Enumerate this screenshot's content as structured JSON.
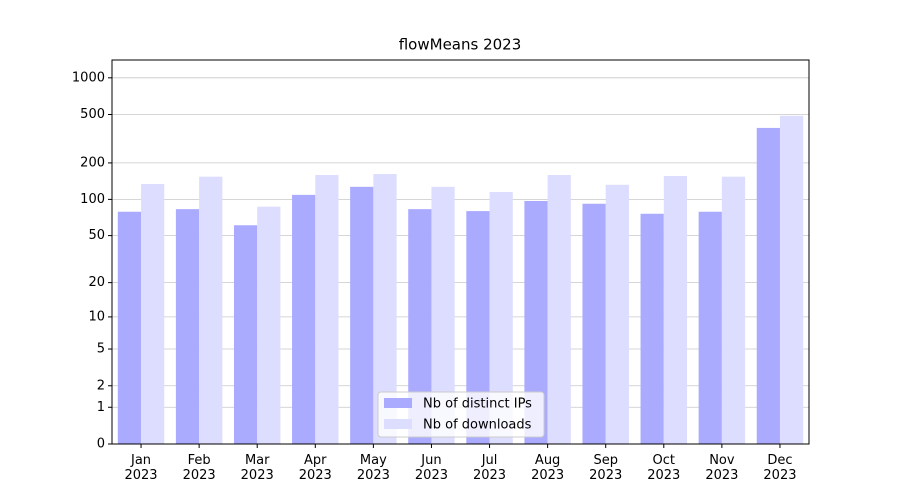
{
  "chart_data": {
    "type": "bar",
    "title": "flowMeans 2023",
    "categories": [
      "Jan\n2023",
      "Feb\n2023",
      "Mar\n2023",
      "Apr\n2023",
      "May\n2023",
      "Jun\n2023",
      "Jul\n2023",
      "Aug\n2023",
      "Sep\n2023",
      "Oct\n2023",
      "Nov\n2023",
      "Dec\n2023"
    ],
    "series": [
      {
        "name": "Nb of distinct IPs",
        "color": "#aaaaff",
        "values": [
          79,
          83,
          61,
          109,
          127,
          83,
          80,
          97,
          92,
          76,
          79,
          388
        ]
      },
      {
        "name": "Nb of downloads",
        "color": "#ddddff",
        "values": [
          134,
          154,
          87,
          159,
          162,
          127,
          115,
          159,
          132,
          156,
          154,
          488
        ]
      }
    ],
    "yscale": "log1p",
    "ylim": [
      0,
      1400
    ],
    "yticks": [
      0,
      1,
      2,
      5,
      10,
      20,
      50,
      100,
      200,
      500,
      1000
    ],
    "grid": true,
    "legend": "bottom"
  }
}
